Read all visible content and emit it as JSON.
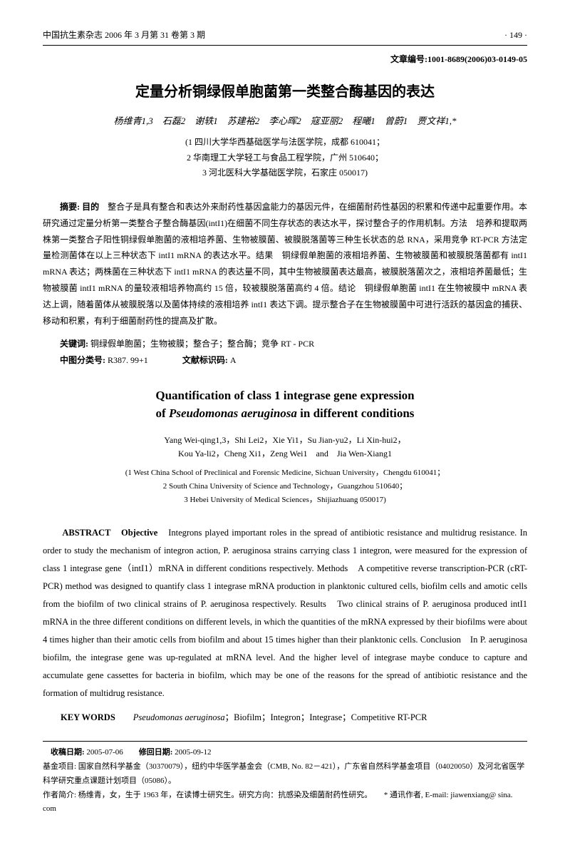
{
  "header": {
    "journal": "中国抗生素杂志 2006 年 3 月第 31 卷第 3 期",
    "page": "· 149 ·"
  },
  "articleId": {
    "label": "文章编号:",
    "value": "1001-8689(2006)03-0149-05"
  },
  "titleCn": "定量分析铜绿假单胞菌第一类整合酶基因的表达",
  "authorsCn": "杨维青1,3　石磊2　谢轶1　苏建裕2　李心晖2　寇亚丽2　程曦1　曾蔚1　贾文祥1,*",
  "affilCn": {
    "a1": "(1 四川大学华西基础医学与法医学院，成都 610041；",
    "a2": "2 华南理工大学轻工与食品工程学院，广州 510640；",
    "a3": "3 河北医科大学基础医学院，石家庄 050017)"
  },
  "abstractCn": {
    "label": "摘要: 目的",
    "text": "　整合子是具有整合和表达外来耐药性基因盒能力的基因元件，在细菌耐药性基因的积累和传递中起重要作用。本研究通过定量分析第一类整合子整合酶基因(intI1)在细菌不同生存状态的表达水平，探讨整合子的作用机制。方法　培养和提取两株第一类整合子阳性铜绿假单胞菌的液相培养菌、生物被膜菌、被膜脱落菌等三种生长状态的总 RNA，采用竞争 RT-PCR 方法定量检测菌体在以上三种状态下 intI1 mRNA 的表达水平。结果　铜绿假单胞菌的液相培养菌、生物被膜菌和被膜脱落菌都有 intI1 mRNA 表达；两株菌在三种状态下 intI1 mRNA 的表达量不同，其中生物被膜菌表达最高，被膜脱落菌次之，液相培养菌最低；生物被膜菌 intI1 mRNA 的量较液相培养物高约 15 倍，较被膜脱落菌高约 4 倍。结论　铜绿假单胞菌 intI1 在生物被膜中 mRNA 表达上调，随着菌体从被膜脱落以及菌体持续的液相培养 intI1 表达下调。提示整合子在生物被膜菌中可进行活跃的基因盒的捕获、移动和积累，有利于细菌耐药性的提高及扩散。"
  },
  "keywordsCn": {
    "label": "关键词:",
    "text": " 铜绿假单胞菌；生物被膜；整合子；整合酶；竞争 RT - PCR"
  },
  "clc": {
    "label1": "中图分类号:",
    "v1": " R387. 99+1",
    "label2": "文献标识码:",
    "v2": " A"
  },
  "titleEn": {
    "l1": "Quantification of class 1 integrase gene expression",
    "l2": "of Pseudomonas aeruginosa in different conditions"
  },
  "authorsEn": {
    "l1": "Yang Wei-qing1,3，Shi Lei2，Xie Yi1，Su Jian-yu2，Li Xin-hui2，",
    "l2": "Kou Ya-li2，Cheng Xi1，Zeng Wei1　and　Jia Wen-Xiang1"
  },
  "affilEn": {
    "a1": "(1 West China School of Preclinical and Forensic Medicine, Sichuan University，Chengdu 610041；",
    "a2": "2 South China University of Science and Technology，Guangzhou 510640；",
    "a3": "3 Hebei University of Medical Sciences，Shijiazhuang 050017)"
  },
  "abstractEn": {
    "label": "ABSTRACT　Objective",
    "text": "　Integrons played important roles in the spread of antibiotic resistance and multidrug resistance. In order to study the mechanism of integron action, P. aeruginosa strains carrying class 1 integron, were measured for the expression of class 1 integrase gene（intI1）mRNA in different conditions respectively. Methods　A competitive reverse transcription-PCR (cRT-PCR) method was designed to quantify class 1 integrase mRNA production in planktonic cultured cells, biofilm cells and amotic cells from the biofilm of two clinical strains of P. aeruginosa respectively. Results　Two clinical strains of P. aeruginosa produced intI1 mRNA in the three different conditions on different levels, in which  the quantities of the mRNA expressed by their biofilms were about 4 times higher than their amotic cells from biofilm and about 15 times higher than their planktonic cells. Conclusion　In P. aeruginosa biofilm, the integrase gene was up-regulated at mRNA level. And the higher level of integrase maybe conduce to capture and accumulate gene cassettes for bacteria in biofilm, which may be one of the reasons for the spread of antibiotic resistance and the formation of multidrug resistance."
  },
  "keywordsEn": {
    "label": "KEY WORDS",
    "text": "　　Pseudomonas aeruginosa；Biofilm；Integron；Integrase；Competitive RT-PCR"
  },
  "footer": {
    "dates": "收稿日期: 2005-07-06　　修回日期: 2005-09-12",
    "fund": "基金项目: 国家自然科学基金（30370079），纽约中华医学基金会（CMB, No. 82－421），广东省自然科学基金项目（04020050）及河北省医学科学研究重点课题计划项目（05086）。",
    "author": "作者简介: 杨维青，女，生于 1963 年，在读博士研究生。研究方向：抗感染及细菌耐药性研究。　　* 通讯作者, E-mail: jiawenxiang@ sina. com"
  }
}
